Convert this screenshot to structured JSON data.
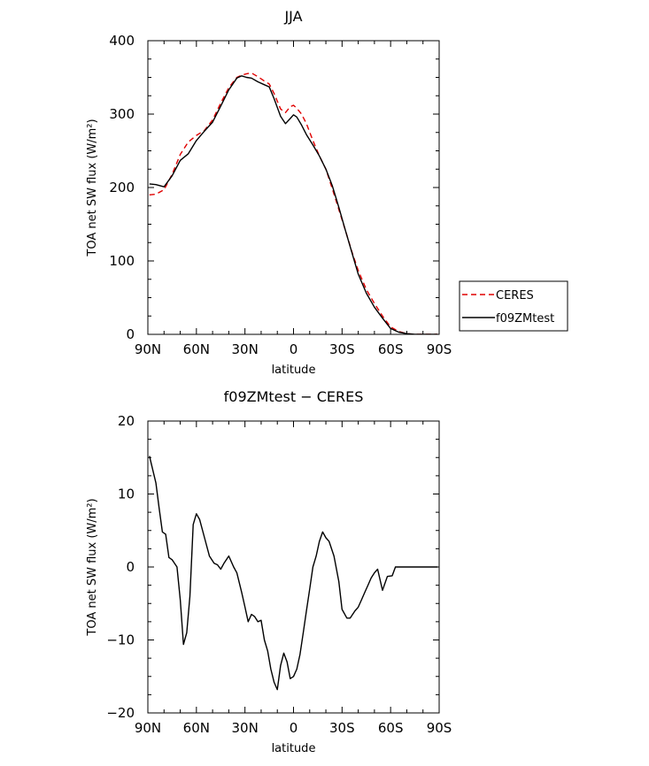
{
  "chart_data": [
    {
      "type": "line",
      "title": "JJA",
      "xlabel": "latitude",
      "ylabel": "TOA net SW flux (W/m²)",
      "xlim": [
        90,
        -90
      ],
      "ylim": [
        0,
        400
      ],
      "xticks": [
        90,
        60,
        30,
        0,
        -30,
        -60,
        -90
      ],
      "xtick_labels": [
        "90N",
        "60N",
        "30N",
        "0",
        "30S",
        "60S",
        "90S"
      ],
      "yticks": [
        0,
        100,
        200,
        300,
        400
      ],
      "ytick_labels": [
        "0",
        "100",
        "200",
        "300",
        "400"
      ],
      "legend_position": "right",
      "series": [
        {
          "name": "CERES",
          "color": "#e00000",
          "dash": "dashed",
          "x": [
            89,
            85,
            80,
            75,
            70,
            65,
            60,
            55,
            50,
            45,
            40,
            35,
            32,
            29,
            26,
            22,
            18,
            15,
            12,
            8,
            5,
            2,
            0,
            -2,
            -5,
            -8,
            -12,
            -16,
            -20,
            -24,
            -28,
            -32,
            -36,
            -40,
            -45,
            -50,
            -55,
            -60,
            -65,
            -70,
            -75,
            -80,
            -85,
            -89
          ],
          "y": [
            190,
            191,
            197,
            218,
            245,
            262,
            271,
            278,
            292,
            315,
            336,
            350,
            353,
            355,
            356,
            351,
            345,
            341,
            328,
            307,
            302,
            310,
            312,
            308,
            300,
            287,
            264,
            243,
            225,
            198,
            170,
            142,
            113,
            87,
            61,
            42,
            25,
            10,
            4,
            1,
            0,
            0,
            0,
            0
          ]
        },
        {
          "name": "f09ZMtest",
          "color": "#000000",
          "dash": "solid",
          "x": [
            89,
            85,
            80,
            75,
            70,
            65,
            60,
            55,
            50,
            45,
            40,
            35,
            32,
            29,
            26,
            22,
            18,
            15,
            12,
            8,
            5,
            2,
            0,
            -2,
            -5,
            -8,
            -12,
            -16,
            -20,
            -24,
            -28,
            -32,
            -36,
            -40,
            -45,
            -50,
            -55,
            -60,
            -65,
            -70,
            -75,
            -80,
            -85,
            -89
          ],
          "y": [
            205,
            204,
            201,
            216,
            237,
            246,
            264,
            277,
            289,
            311,
            333,
            349,
            352,
            350,
            349,
            344,
            340,
            337,
            321,
            297,
            287,
            294,
            299,
            296,
            285,
            272,
            258,
            243,
            225,
            202,
            173,
            142,
            112,
            82,
            56,
            37,
            22,
            8,
            3,
            1,
            0,
            0,
            0,
            0
          ]
        }
      ]
    },
    {
      "type": "line",
      "title": "f09ZMtest − CERES",
      "xlabel": "latitude",
      "ylabel": "TOA net SW flux (W/m²)",
      "xlim": [
        90,
        -90
      ],
      "ylim": [
        -20,
        20
      ],
      "xticks": [
        90,
        60,
        30,
        0,
        -30,
        -60,
        -90
      ],
      "xtick_labels": [
        "90N",
        "60N",
        "30N",
        "0",
        "30S",
        "60S",
        "90S"
      ],
      "yticks": [
        -20,
        -10,
        0,
        10,
        20
      ],
      "ytick_labels": [
        "−20",
        "−10",
        "0",
        "10",
        "20"
      ],
      "series": [
        {
          "color": "#000000",
          "dash": "solid",
          "x": [
            89,
            85,
            83,
            81,
            79,
            77,
            75,
            72,
            70,
            68,
            66,
            64,
            62,
            60,
            58,
            55,
            52,
            49,
            47,
            45,
            43,
            40,
            37,
            35,
            32,
            30,
            28,
            26,
            24,
            22,
            20,
            18,
            16,
            14,
            12,
            10,
            8,
            6,
            4,
            2,
            0,
            -2,
            -4,
            -6,
            -8,
            -10,
            -12,
            -14,
            -16,
            -18,
            -20,
            -22,
            -25,
            -28,
            -30,
            -33,
            -35,
            -38,
            -40,
            -42,
            -44,
            -46,
            -48,
            -50,
            -52,
            -55,
            -58,
            -61,
            -63,
            -65,
            -67,
            -70,
            -72,
            -75,
            -80,
            -85,
            -89
          ],
          "y": [
            15.2,
            11.5,
            8.0,
            4.8,
            4.5,
            1.3,
            1.0,
            0.0,
            -4.5,
            -10.6,
            -9.0,
            -4.0,
            5.8,
            7.3,
            6.5,
            4.0,
            1.5,
            0.5,
            0.3,
            -0.3,
            0.5,
            1.5,
            0.0,
            -0.8,
            -3.5,
            -5.5,
            -7.5,
            -6.5,
            -6.8,
            -7.5,
            -7.3,
            -10.0,
            -11.5,
            -14.0,
            -15.8,
            -16.8,
            -13.5,
            -11.8,
            -13.0,
            -15.3,
            -15.0,
            -14.0,
            -12.0,
            -9.0,
            -6.0,
            -3.0,
            0.0,
            1.5,
            3.5,
            4.8,
            4.0,
            3.5,
            1.5,
            -2.0,
            -5.8,
            -7.0,
            -7.0,
            -6.0,
            -5.5,
            -4.5,
            -3.5,
            -2.5,
            -1.5,
            -0.8,
            -0.3,
            -3.2,
            -1.3,
            -1.2,
            0.0,
            0.0,
            0.0,
            0.0,
            0.0,
            0.0,
            0.0,
            0.0,
            0.0
          ]
        }
      ]
    }
  ]
}
